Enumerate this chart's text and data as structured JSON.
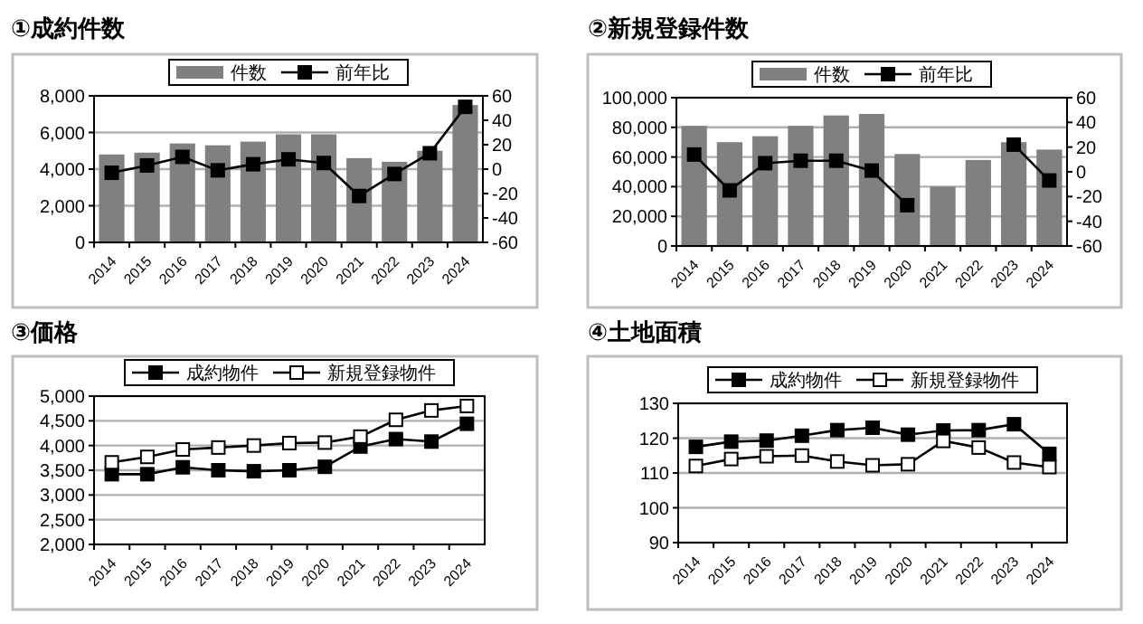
{
  "chart_data": [
    {
      "type": "bar",
      "title": "①成約件数",
      "categories": [
        "2014",
        "2015",
        "2016",
        "2017",
        "2018",
        "2019",
        "2020",
        "2021",
        "2022",
        "2023",
        "2024"
      ],
      "series": [
        {
          "name": "件数",
          "type": "bar",
          "color": "#808080",
          "values": [
            4800,
            4900,
            5400,
            5300,
            5500,
            5900,
            5900,
            4600,
            4400,
            5000,
            7500
          ]
        },
        {
          "name": "前年比",
          "type": "line",
          "axis": "y2",
          "color": "#000000",
          "marker": "square",
          "values": [
            -3,
            3,
            10,
            -1,
            4,
            8,
            5,
            -22,
            -4,
            13,
            51
          ]
        }
      ],
      "ylim": [
        0,
        8000
      ],
      "yticks": [
        {
          "value": 0,
          "label": "0"
        },
        {
          "value": 2000,
          "label": "2,000"
        },
        {
          "value": 4000,
          "label": "4,000"
        },
        {
          "value": 6000,
          "label": "6,000"
        },
        {
          "value": 8000,
          "label": "8,000"
        }
      ],
      "y2lim": [
        -60,
        60
      ],
      "y2ticks": [
        -60,
        -40,
        -20,
        0,
        20,
        40,
        60
      ],
      "grid": "y",
      "legend": "top"
    },
    {
      "type": "bar",
      "title": "②新規登録件数",
      "categories": [
        "2014",
        "2015",
        "2016",
        "2017",
        "2018",
        "2019",
        "2020",
        "2021",
        "2022",
        "2023",
        "2024"
      ],
      "series": [
        {
          "name": "件数",
          "type": "bar",
          "color": "#808080",
          "values": [
            81000,
            70000,
            74000,
            81000,
            88000,
            89000,
            62000,
            40000,
            58000,
            70000,
            65000
          ]
        },
        {
          "name": "前年比",
          "type": "line",
          "axis": "y2",
          "color": "#000000",
          "marker": "square",
          "values": [
            14,
            -15,
            7,
            9,
            9,
            1,
            -27,
            null,
            null,
            22,
            -7
          ]
        }
      ],
      "ylim": [
        0,
        100000
      ],
      "yticks": [
        {
          "value": 0,
          "label": "0"
        },
        {
          "value": 20000,
          "label": "20,000"
        },
        {
          "value": 40000,
          "label": "40,000"
        },
        {
          "value": 60000,
          "label": "60,000"
        },
        {
          "value": 80000,
          "label": "80,000"
        },
        {
          "value": 100000,
          "label": "100,000"
        }
      ],
      "y2lim": [
        -60,
        60
      ],
      "y2ticks": [
        -60,
        -40,
        -20,
        0,
        20,
        40,
        60
      ],
      "grid": "y",
      "legend": "top"
    },
    {
      "type": "line",
      "title": "③価格",
      "categories": [
        "2014",
        "2015",
        "2016",
        "2017",
        "2018",
        "2019",
        "2020",
        "2021",
        "2022",
        "2023",
        "2024"
      ],
      "series": [
        {
          "name": "成約物件",
          "color": "#000000",
          "marker": "square",
          "values": [
            3420,
            3420,
            3560,
            3500,
            3480,
            3500,
            3570,
            3980,
            4130,
            4080,
            4440
          ]
        },
        {
          "name": "新規登録物件",
          "color": "#ffffff",
          "marker": "square",
          "values": [
            3660,
            3770,
            3920,
            3960,
            4000,
            4050,
            4060,
            4180,
            4520,
            4710,
            4800
          ]
        }
      ],
      "ylim": [
        2000,
        5000
      ],
      "yticks": [
        {
          "value": 2000,
          "label": "2,000"
        },
        {
          "value": 2500,
          "label": "2,500"
        },
        {
          "value": 3000,
          "label": "3,000"
        },
        {
          "value": 3500,
          "label": "3,500"
        },
        {
          "value": 4000,
          "label": "4,000"
        },
        {
          "value": 4500,
          "label": "4,500"
        },
        {
          "value": 5000,
          "label": "5,000"
        }
      ],
      "grid": "y",
      "legend": "top"
    },
    {
      "type": "line",
      "title": "④土地面積",
      "categories": [
        "2014",
        "2015",
        "2016",
        "2017",
        "2018",
        "2019",
        "2020",
        "2021",
        "2022",
        "2023",
        "2024"
      ],
      "series": [
        {
          "name": "成約物件",
          "color": "#000000",
          "marker": "square",
          "values": [
            117.5,
            119,
            119.3,
            120.7,
            122.3,
            123,
            121,
            122.2,
            122.3,
            124,
            115.5
          ]
        },
        {
          "name": "新規登録物件",
          "color": "#ffffff",
          "marker": "square",
          "values": [
            112,
            114,
            114.8,
            115,
            113.3,
            112.2,
            112.5,
            119.2,
            117.3,
            113,
            111.7
          ]
        }
      ],
      "ylim": [
        90,
        130
      ],
      "yticks": [
        90,
        100,
        110,
        120,
        130
      ],
      "grid": "y",
      "legend": "top"
    }
  ]
}
